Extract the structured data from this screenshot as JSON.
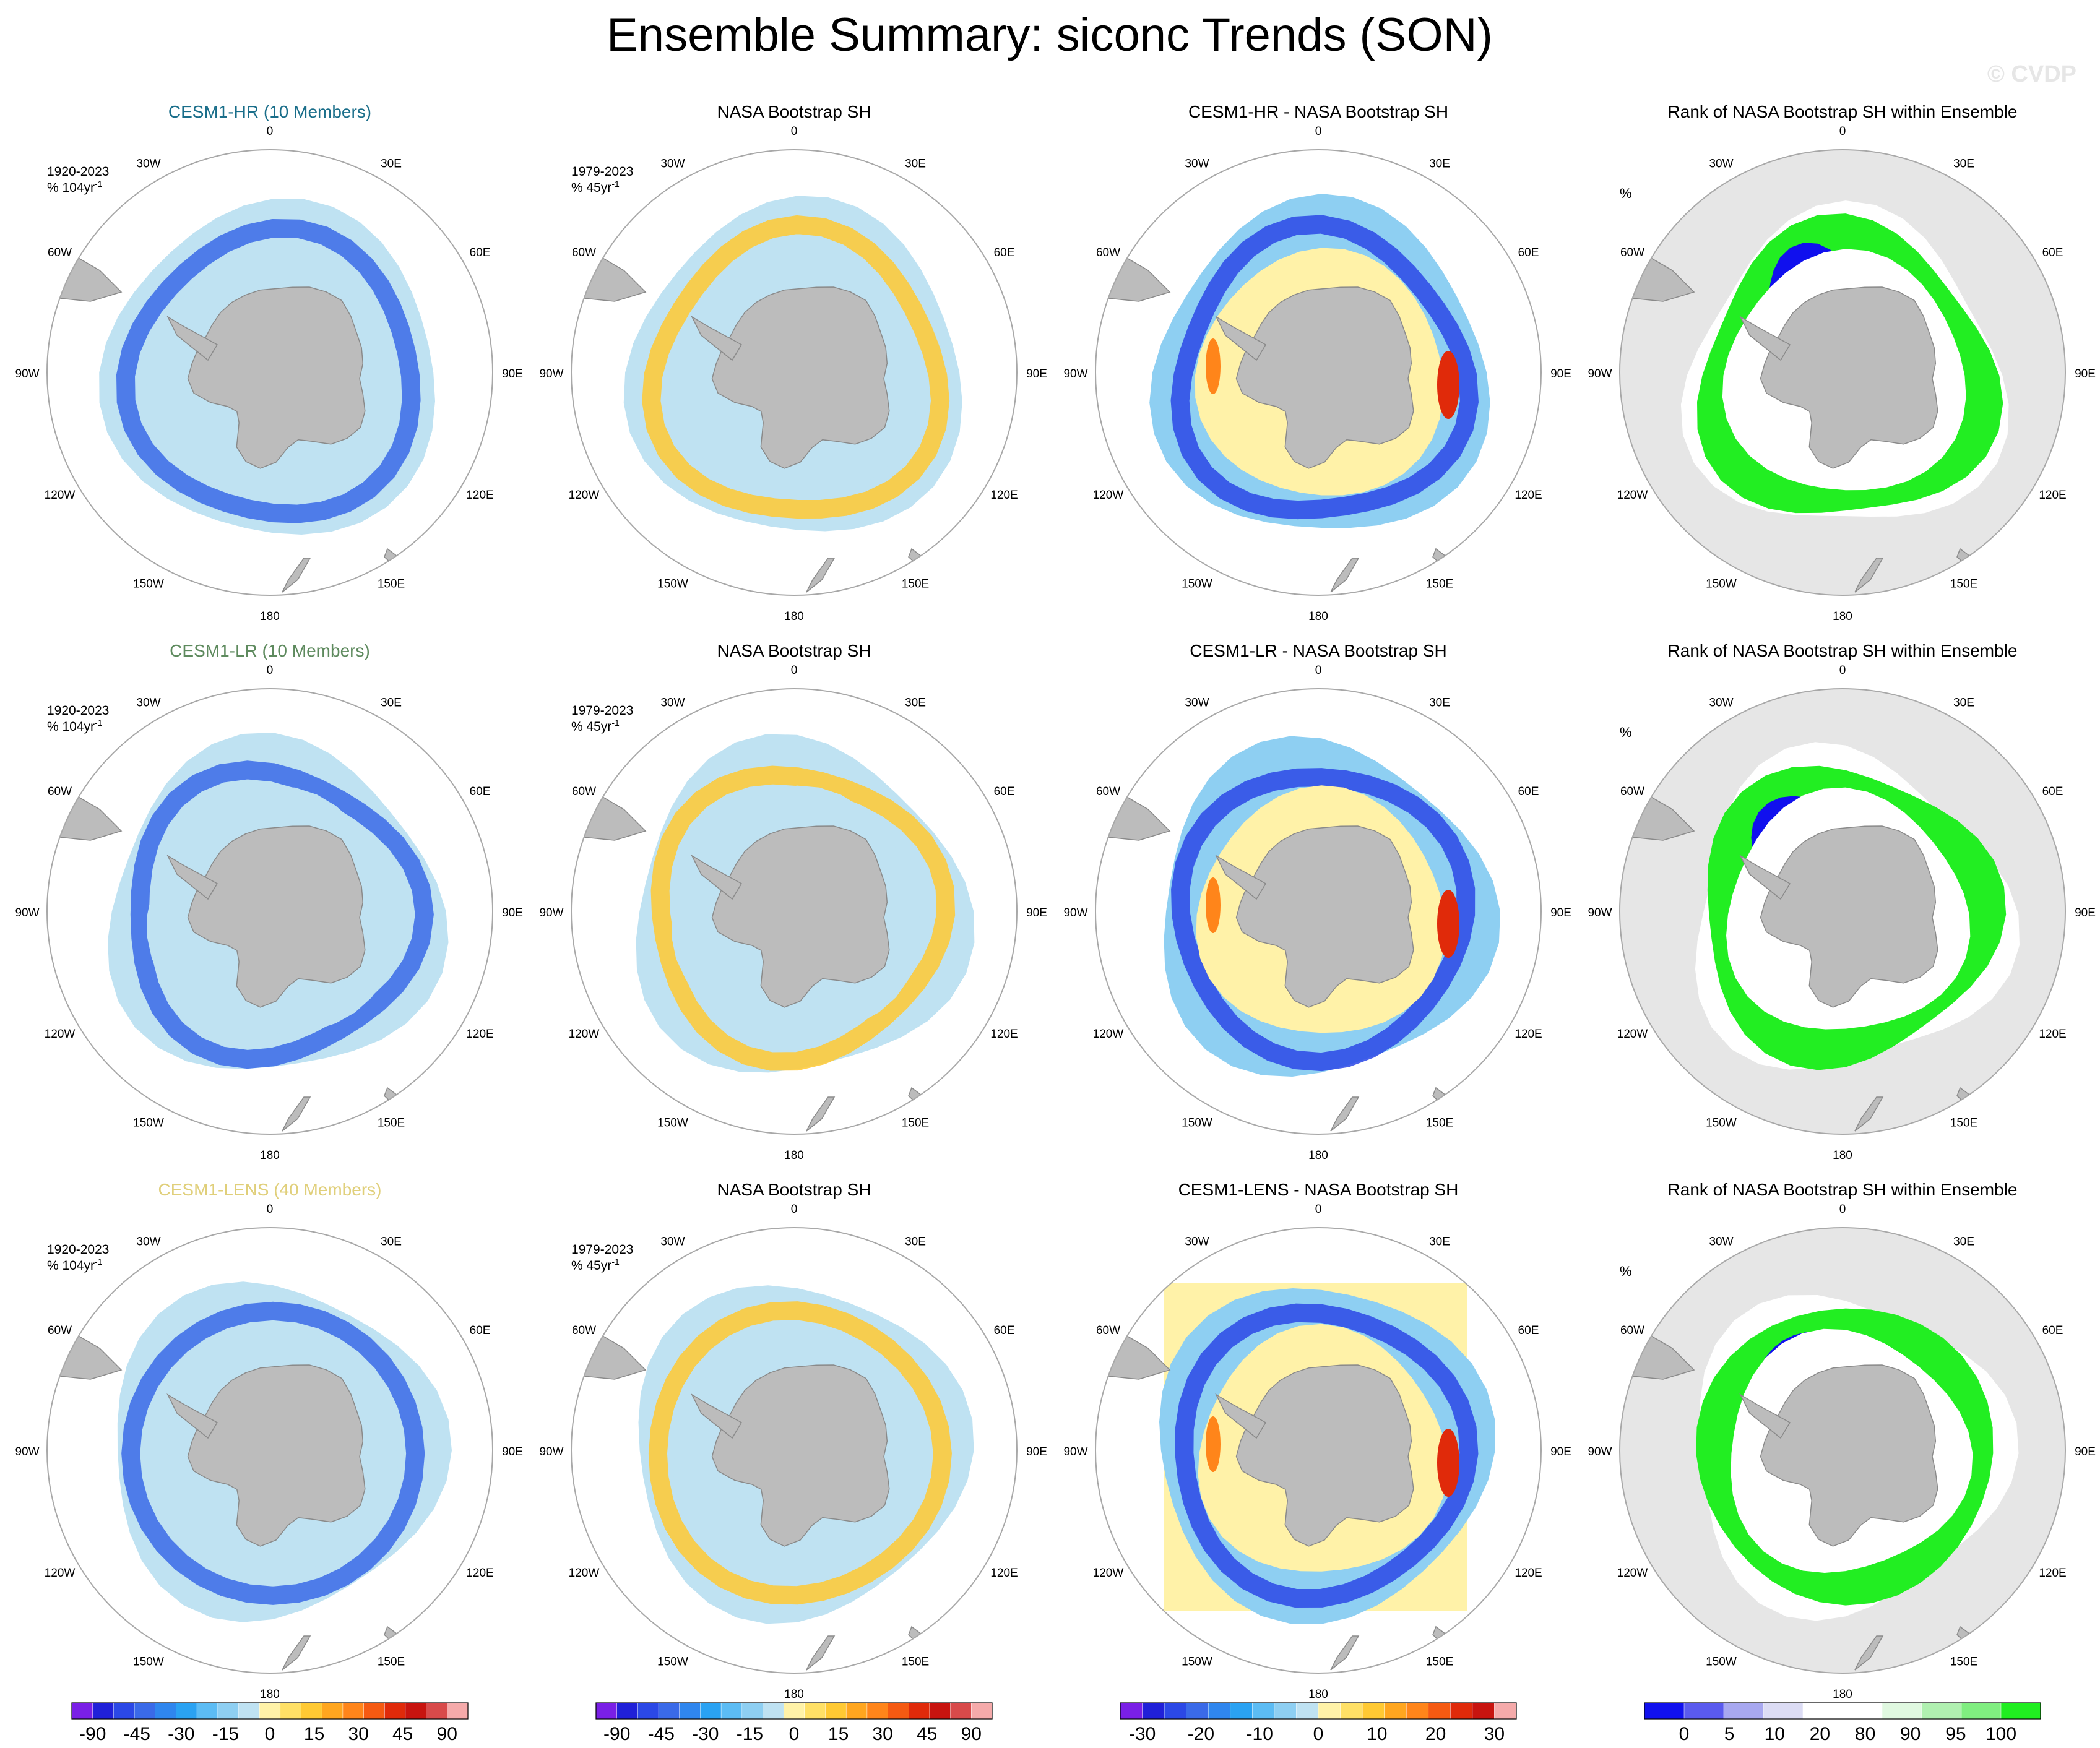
{
  "title": "Ensemble Summary: siconc Trends (SON)",
  "watermark": "© CVDP",
  "lon_labels": [
    "0",
    "30E",
    "60E",
    "90E",
    "120E",
    "150E",
    "180",
    "150W",
    "120W",
    "90W",
    "60W",
    "30W"
  ],
  "chart_data": [
    {
      "type": "heatmap",
      "row": 0,
      "col": 0,
      "title": "CESM1-HR (10 Members)",
      "title_color": "#1a6e8a",
      "period": "1920-2023",
      "units_prefix": "% 104yr",
      "units_sup": "-1",
      "kind": "model"
    },
    {
      "type": "heatmap",
      "row": 0,
      "col": 1,
      "title": "NASA Bootstrap SH",
      "title_color": "#000000",
      "period": "1979-2023",
      "units_prefix": "% 45yr",
      "units_sup": "-1",
      "kind": "obs"
    },
    {
      "type": "heatmap",
      "row": 0,
      "col": 2,
      "title": "CESM1-HR - NASA Bootstrap SH",
      "title_color": "#000000",
      "kind": "diff"
    },
    {
      "type": "heatmap",
      "row": 0,
      "col": 3,
      "title": "Rank of NASA Bootstrap SH within Ensemble",
      "title_color": "#000000",
      "unit": "%",
      "kind": "rank"
    },
    {
      "type": "heatmap",
      "row": 1,
      "col": 0,
      "title": "CESM1-LR (10 Members)",
      "title_color": "#5e8a5e",
      "period": "1920-2023",
      "units_prefix": "% 104yr",
      "units_sup": "-1",
      "kind": "model"
    },
    {
      "type": "heatmap",
      "row": 1,
      "col": 1,
      "title": "NASA Bootstrap SH",
      "title_color": "#000000",
      "period": "1979-2023",
      "units_prefix": "% 45yr",
      "units_sup": "-1",
      "kind": "obs"
    },
    {
      "type": "heatmap",
      "row": 1,
      "col": 2,
      "title": "CESM1-LR - NASA Bootstrap SH",
      "title_color": "#000000",
      "kind": "diff"
    },
    {
      "type": "heatmap",
      "row": 1,
      "col": 3,
      "title": "Rank of NASA Bootstrap SH within Ensemble",
      "title_color": "#000000",
      "unit": "%",
      "kind": "rank"
    },
    {
      "type": "heatmap",
      "row": 2,
      "col": 0,
      "title": "CESM1-LENS (40 Members)",
      "title_color": "#e0cf7a",
      "period": "1920-2023",
      "units_prefix": "% 104yr",
      "units_sup": "-1",
      "kind": "model"
    },
    {
      "type": "heatmap",
      "row": 2,
      "col": 1,
      "title": "NASA Bootstrap SH",
      "title_color": "#000000",
      "period": "1979-2023",
      "units_prefix": "% 45yr",
      "units_sup": "-1",
      "kind": "obs"
    },
    {
      "type": "heatmap",
      "row": 2,
      "col": 2,
      "title": "CESM1-LENS - NASA Bootstrap SH",
      "title_color": "#000000",
      "kind": "diff",
      "filled_square": true
    },
    {
      "type": "heatmap",
      "row": 2,
      "col": 3,
      "title": "Rank of NASA Bootstrap SH within Ensemble",
      "title_color": "#000000",
      "unit": "%",
      "kind": "rank"
    }
  ],
  "colorbars": [
    {
      "colors": [
        "#7a1fe6",
        "#2020d8",
        "#2b48e6",
        "#3a6ae8",
        "#2f86ee",
        "#2aa2f2",
        "#5cbcf4",
        "#8ecff2",
        "#bfe2f2",
        "#fff2a8",
        "#ffe066",
        "#ffc933",
        "#ffa61f",
        "#ff851a",
        "#f55a12",
        "#e02a0a",
        "#c8140f",
        "#d84a4a",
        "#f5aaaa"
      ],
      "tick_labels": [
        "-90",
        "-45",
        "-30",
        "-15",
        "0",
        "15",
        "30",
        "45",
        "90"
      ]
    },
    {
      "colors": [
        "#7a1fe6",
        "#2020d8",
        "#2b48e6",
        "#3a6ae8",
        "#2f86ee",
        "#2aa2f2",
        "#5cbcf4",
        "#8ecff2",
        "#bfe2f2",
        "#fff2a8",
        "#ffe066",
        "#ffc933",
        "#ffa61f",
        "#ff851a",
        "#f55a12",
        "#e02a0a",
        "#c8140f",
        "#d84a4a",
        "#f5aaaa"
      ],
      "tick_labels": [
        "-90",
        "-45",
        "-30",
        "-15",
        "0",
        "15",
        "30",
        "45",
        "90"
      ]
    },
    {
      "colors": [
        "#7a1fe6",
        "#2020d8",
        "#2b48e6",
        "#3a6ae8",
        "#2f86ee",
        "#2aa2f2",
        "#5cbcf4",
        "#8ecff2",
        "#bfe2f2",
        "#fff2a8",
        "#ffe066",
        "#ffc933",
        "#ffa61f",
        "#ff851a",
        "#f55a12",
        "#e02a0a",
        "#c8140f",
        "#f5aaaa"
      ],
      "tick_labels": [
        "-30",
        "-20",
        "-10",
        "0",
        "10",
        "20",
        "30"
      ]
    },
    {
      "colors": [
        "#1010ee",
        "#5a5aee",
        "#a8a8f0",
        "#dcdcf4",
        "#ffffff",
        "#ffffff",
        "#e0f8e0",
        "#b0f0b0",
        "#80ee80",
        "#20ee20"
      ],
      "tick_labels": [
        "0",
        "5",
        "10",
        "20",
        "80",
        "90",
        "95",
        "100"
      ]
    }
  ]
}
